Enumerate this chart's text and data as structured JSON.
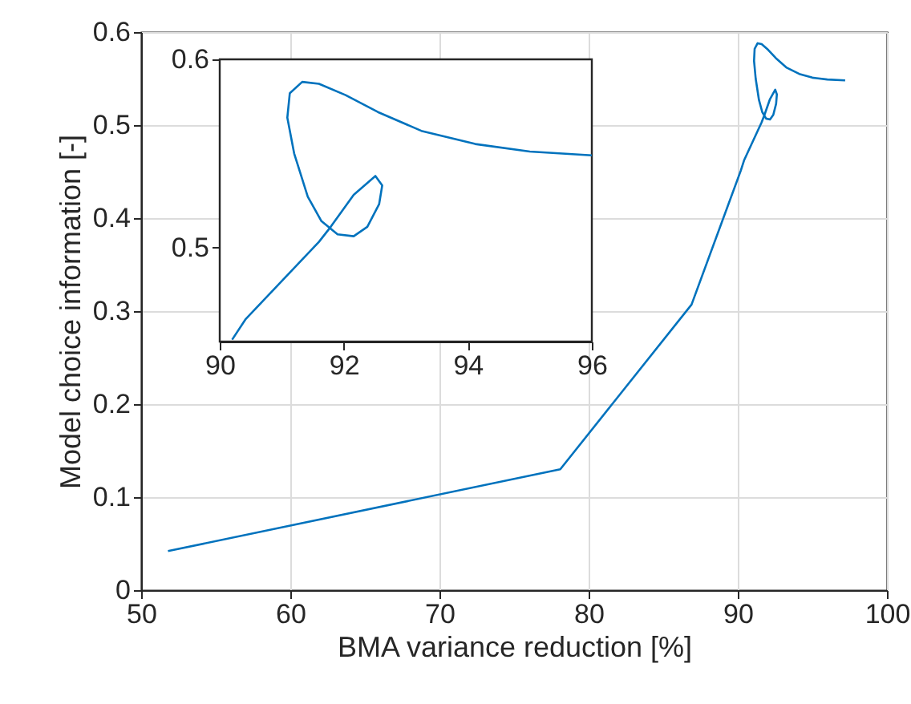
{
  "chart_data": [
    {
      "type": "line",
      "xlabel": "BMA variance reduction [%]",
      "ylabel": "Model choice information [-]",
      "color": "#0072bd",
      "grid": true,
      "xlim": [
        50,
        100
      ],
      "ylim": [
        0,
        0.6
      ],
      "xticks": [
        50,
        60,
        70,
        80,
        90,
        100
      ],
      "yticks": [
        0,
        0.1,
        0.2,
        0.3,
        0.4,
        0.5,
        0.6
      ],
      "x": [
        51.8,
        78.1,
        86.9,
        90.2,
        90.42,
        91.6,
        91.79,
        92.16,
        92.51,
        92.62,
        92.57,
        92.38,
        92.16,
        91.9,
        91.64,
        91.42,
        91.2,
        91.09,
        91.13,
        91.33,
        91.6,
        92.03,
        92.55,
        93.25,
        94.12,
        95.0,
        96.0,
        97.2
      ],
      "values": [
        0.042,
        0.13,
        0.307,
        0.451,
        0.462,
        0.503,
        0.511,
        0.528,
        0.538,
        0.533,
        0.523,
        0.511,
        0.506,
        0.507,
        0.514,
        0.527,
        0.55,
        0.569,
        0.582,
        0.588,
        0.587,
        0.581,
        0.572,
        0.562,
        0.555,
        0.551,
        0.549,
        0.548
      ]
    },
    {
      "type": "line",
      "color": "#0072bd",
      "grid": false,
      "xlim": [
        90,
        96
      ],
      "ylim": [
        0.45,
        0.6
      ],
      "xticks": [
        90,
        92,
        94,
        96
      ],
      "yticks": [
        0.5,
        0.6
      ],
      "x": [
        90.2,
        90.42,
        91.6,
        91.79,
        92.16,
        92.51,
        92.62,
        92.57,
        92.38,
        92.16,
        91.9,
        91.64,
        91.42,
        91.2,
        91.09,
        91.13,
        91.33,
        91.6,
        92.03,
        92.55,
        93.25,
        94.12,
        95.0,
        96.0
      ],
      "values": [
        0.451,
        0.462,
        0.503,
        0.511,
        0.528,
        0.538,
        0.533,
        0.523,
        0.511,
        0.506,
        0.507,
        0.514,
        0.527,
        0.55,
        0.569,
        0.582,
        0.588,
        0.587,
        0.581,
        0.572,
        0.562,
        0.555,
        0.551,
        0.549
      ]
    }
  ]
}
